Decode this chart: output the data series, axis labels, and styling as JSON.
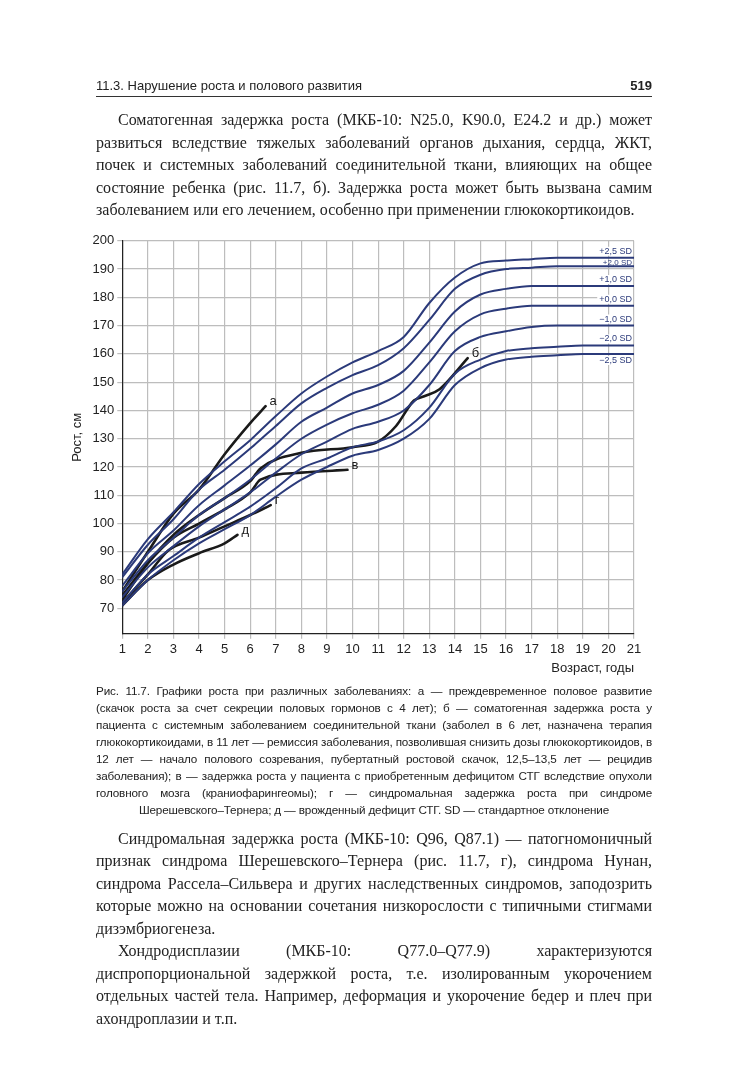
{
  "chart_data": {
    "type": "line",
    "annotations": [
      "11.3. Нарушение роста и полового развития",
      "519",
      "Соматогенная задержка роста (МКБ-10: N25.0, K90.0, E24.2 и др.) может развиться вследствие тяжелых заболеваний органов дыхания, сердца, ЖКТ, почек и системных заболеваний соединительной ткани, влияющих на общее состояние ребенка (рис. 11.7, б). Задержка роста может быть вызвана самим заболеванием или его лечением, особенно при применении глюкокортикоидов.",
      "Рис. 11.7. Графики роста при различных заболеваниях: а — преждевременное половое развитие (скачок роста за счет секреции половых гормонов с 4 лет); б — соматогенная задержка роста у пациента с системным заболеванием соединительной ткани (заболел в 6 лет, назначена терапия глюкокортикоидами, в 11 лет — ремиссия заболевания, позволившая снизить дозы глюкокортикоидов, в 12 лет — начало полового созревания, пубертатный ростовой скачок, 12,5–13,5 лет — рецидив заболевания); в — задержка роста у пациента с приобретенным дефицитом СТГ вследствие опухоли головного мозга (краниофарингеомы); г — синдромальная задержка роста при синдроме Шерешевского–Тернера; д — врожденный дефицит СТГ. SD — стандартное отклонение",
      "Синдромальная задержка роста (МКБ-10: Q96, Q87.1) — патогномоничный признак синдрома Шерешевского–Тернера (рис. 11.7, г), синдрома Нунан, синдрома Рассела–Сильвера и других наследственных синдромов, заподозрить которые можно на основании сочетания низкорослости с типичными стигмами дизэмбриогенеза.",
      "Хондродисплазии (МКБ-10: Q77.0–Q77.9) характеризуются диспропорциональной задержкой роста, т.е. изолированным укорочением отдельных частей тела. Например, деформация и укорочение бедер и плеч при ахондроплазии и т.п."
    ],
    "xlabel": "Возраст, годы",
    "ylabel": "Рост, см",
    "x": [
      1,
      2,
      3,
      4,
      5,
      6,
      7,
      8,
      9,
      10,
      11,
      12,
      13,
      14,
      15,
      16,
      17,
      18,
      19,
      20,
      21
    ],
    "xlim": [
      1,
      21
    ],
    "xticks": [
      1,
      2,
      3,
      4,
      5,
      6,
      7,
      8,
      9,
      10,
      11,
      12,
      13,
      14,
      15,
      16,
      17,
      18,
      19,
      20,
      21
    ],
    "ylim": [
      61,
      200
    ],
    "yticks": [
      70,
      80,
      90,
      100,
      110,
      120,
      130,
      140,
      150,
      160,
      170,
      180,
      190,
      200
    ],
    "grid": true,
    "legend": false,
    "marker": "none",
    "line_style": "solid",
    "series": [
      {
        "name": "+2,5 SD",
        "color": "#2b3a7a",
        "values": [
          82,
          94.5,
          104,
          114,
          122,
          129.5,
          138,
          146,
          152,
          157,
          161,
          166,
          178,
          187,
          192,
          193,
          193.5,
          194,
          194,
          194,
          194
        ]
      },
      {
        "name": "+2,0 SD",
        "color": "#2b3a7a",
        "values": [
          81,
          92.5,
          101.5,
          112,
          119,
          126.5,
          134.5,
          142.5,
          148,
          152.5,
          156,
          162,
          172,
          183,
          188,
          190,
          190.5,
          191,
          191,
          191,
          191
        ]
      },
      {
        "name": "+1,0 SD",
        "color": "#2b3a7a",
        "values": [
          78,
          89.5,
          97.5,
          106.5,
          113.5,
          120.5,
          128,
          136,
          141,
          146,
          149,
          154,
          164,
          175,
          181,
          183,
          184,
          184,
          184,
          184,
          184
        ]
      },
      {
        "name": "+0,0 SD",
        "color": "#2b3a7a",
        "values": [
          76,
          87,
          95,
          103,
          109,
          115.5,
          123,
          130,
          135,
          139,
          142,
          147,
          157,
          168,
          174,
          176,
          177,
          177,
          177,
          177,
          177
        ]
      },
      {
        "name": "−1,0 SD",
        "color": "#2b3a7a",
        "values": [
          74,
          84.5,
          92,
          99,
          105,
          111,
          118,
          124.5,
          129,
          133.5,
          136,
          140,
          149,
          161,
          166,
          168,
          169.5,
          170,
          170,
          170,
          170
        ]
      },
      {
        "name": "−2,0 SD",
        "color": "#2b3a7a",
        "values": [
          72,
          82,
          88.5,
          95,
          100.5,
          106,
          112.5,
          119.5,
          123,
          127,
          129,
          133,
          141,
          153,
          158,
          161,
          162,
          162.5,
          163,
          163,
          163
        ]
      },
      {
        "name": "−2,5 SD",
        "color": "#2b3a7a",
        "values": [
          71,
          80,
          87,
          93,
          98,
          103,
          109.5,
          115.5,
          120,
          124,
          126,
          130,
          137,
          149,
          155,
          158,
          159,
          159.5,
          160,
          160,
          160
        ]
      },
      {
        "name": "а",
        "color": "#1a1a1a",
        "x": [
          1,
          2,
          3,
          4,
          5,
          6,
          6.6
        ],
        "values": [
          76,
          90,
          103.5,
          112,
          124.5,
          135.5,
          141.5
        ]
      },
      {
        "name": "б",
        "color": "#1a1a1a",
        "x": [
          1,
          2,
          3,
          4,
          5,
          6,
          6.4,
          8,
          10,
          11,
          11.7,
          12.4,
          12.8,
          13.4,
          14.5
        ],
        "values": [
          73,
          86,
          96,
          103,
          109,
          115,
          119.5,
          125,
          127,
          129,
          134.5,
          143.5,
          145,
          147.5,
          158.5
        ]
      },
      {
        "name": "в",
        "color": "#1a1a1a",
        "x": [
          1,
          2,
          3,
          4,
          5,
          6,
          6.4,
          8,
          9.8
        ],
        "values": [
          74.5,
          86,
          95,
          100,
          105,
          111,
          115.5,
          118,
          119
        ]
      },
      {
        "name": "г",
        "color": "#1a1a1a",
        "x": [
          1,
          2,
          2.8,
          4,
          5,
          6,
          6.8
        ],
        "values": [
          72,
          82,
          90.5,
          95,
          99,
          103,
          106.5
        ]
      },
      {
        "name": "д",
        "color": "#1a1a1a",
        "x": [
          1,
          2,
          3,
          4,
          5,
          5.5
        ],
        "values": [
          71,
          80,
          85.5,
          89.5,
          93,
          96
        ]
      }
    ]
  }
}
